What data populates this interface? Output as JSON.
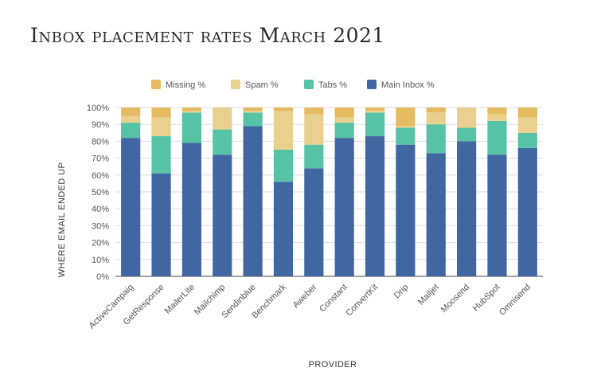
{
  "chart_data": {
    "type": "bar",
    "stacked": true,
    "title": "Inbox placement rates March 2021",
    "xlabel": "PROVIDER",
    "ylabel": "WHERE EMAIL ENDED UP",
    "ylim": [
      0,
      100
    ],
    "yticks": [
      "0%",
      "10%",
      "20%",
      "30%",
      "40%",
      "50%",
      "60%",
      "70%",
      "80%",
      "90%",
      "100%"
    ],
    "grid": true,
    "legend_position": "top",
    "categories": [
      "ActiveCampaig",
      "GetResponse",
      "MailerLite",
      "Mailchimp",
      "Sendinblue",
      "Benchmark",
      "Aweber",
      "Constant",
      "ConvertKit",
      "Drip",
      "Mailjet",
      "Moosend",
      "HubSpot",
      "Omnisend"
    ],
    "series": [
      {
        "name": "Main Inbox %",
        "color": "#4167a3",
        "values": [
          82,
          61,
          79,
          72,
          89,
          56,
          64,
          82,
          83,
          78,
          73,
          80,
          72,
          76
        ]
      },
      {
        "name": "Tabs %",
        "color": "#56c2a6",
        "values": [
          9,
          22,
          18,
          15,
          8,
          19,
          14,
          9,
          14,
          10,
          17,
          8,
          20,
          9
        ]
      },
      {
        "name": "Spam %",
        "color": "#ead08f",
        "values": [
          4,
          11,
          1,
          13,
          1,
          23,
          18,
          3,
          1,
          1,
          7,
          12,
          4,
          9
        ]
      },
      {
        "name": "Missing %",
        "color": "#e5bb61",
        "values": [
          5,
          6,
          2,
          0,
          2,
          2,
          4,
          6,
          2,
          11,
          3,
          0,
          4,
          6
        ]
      }
    ],
    "legend_order": [
      "Missing %",
      "Spam %",
      "Tabs %",
      "Main Inbox %"
    ]
  }
}
